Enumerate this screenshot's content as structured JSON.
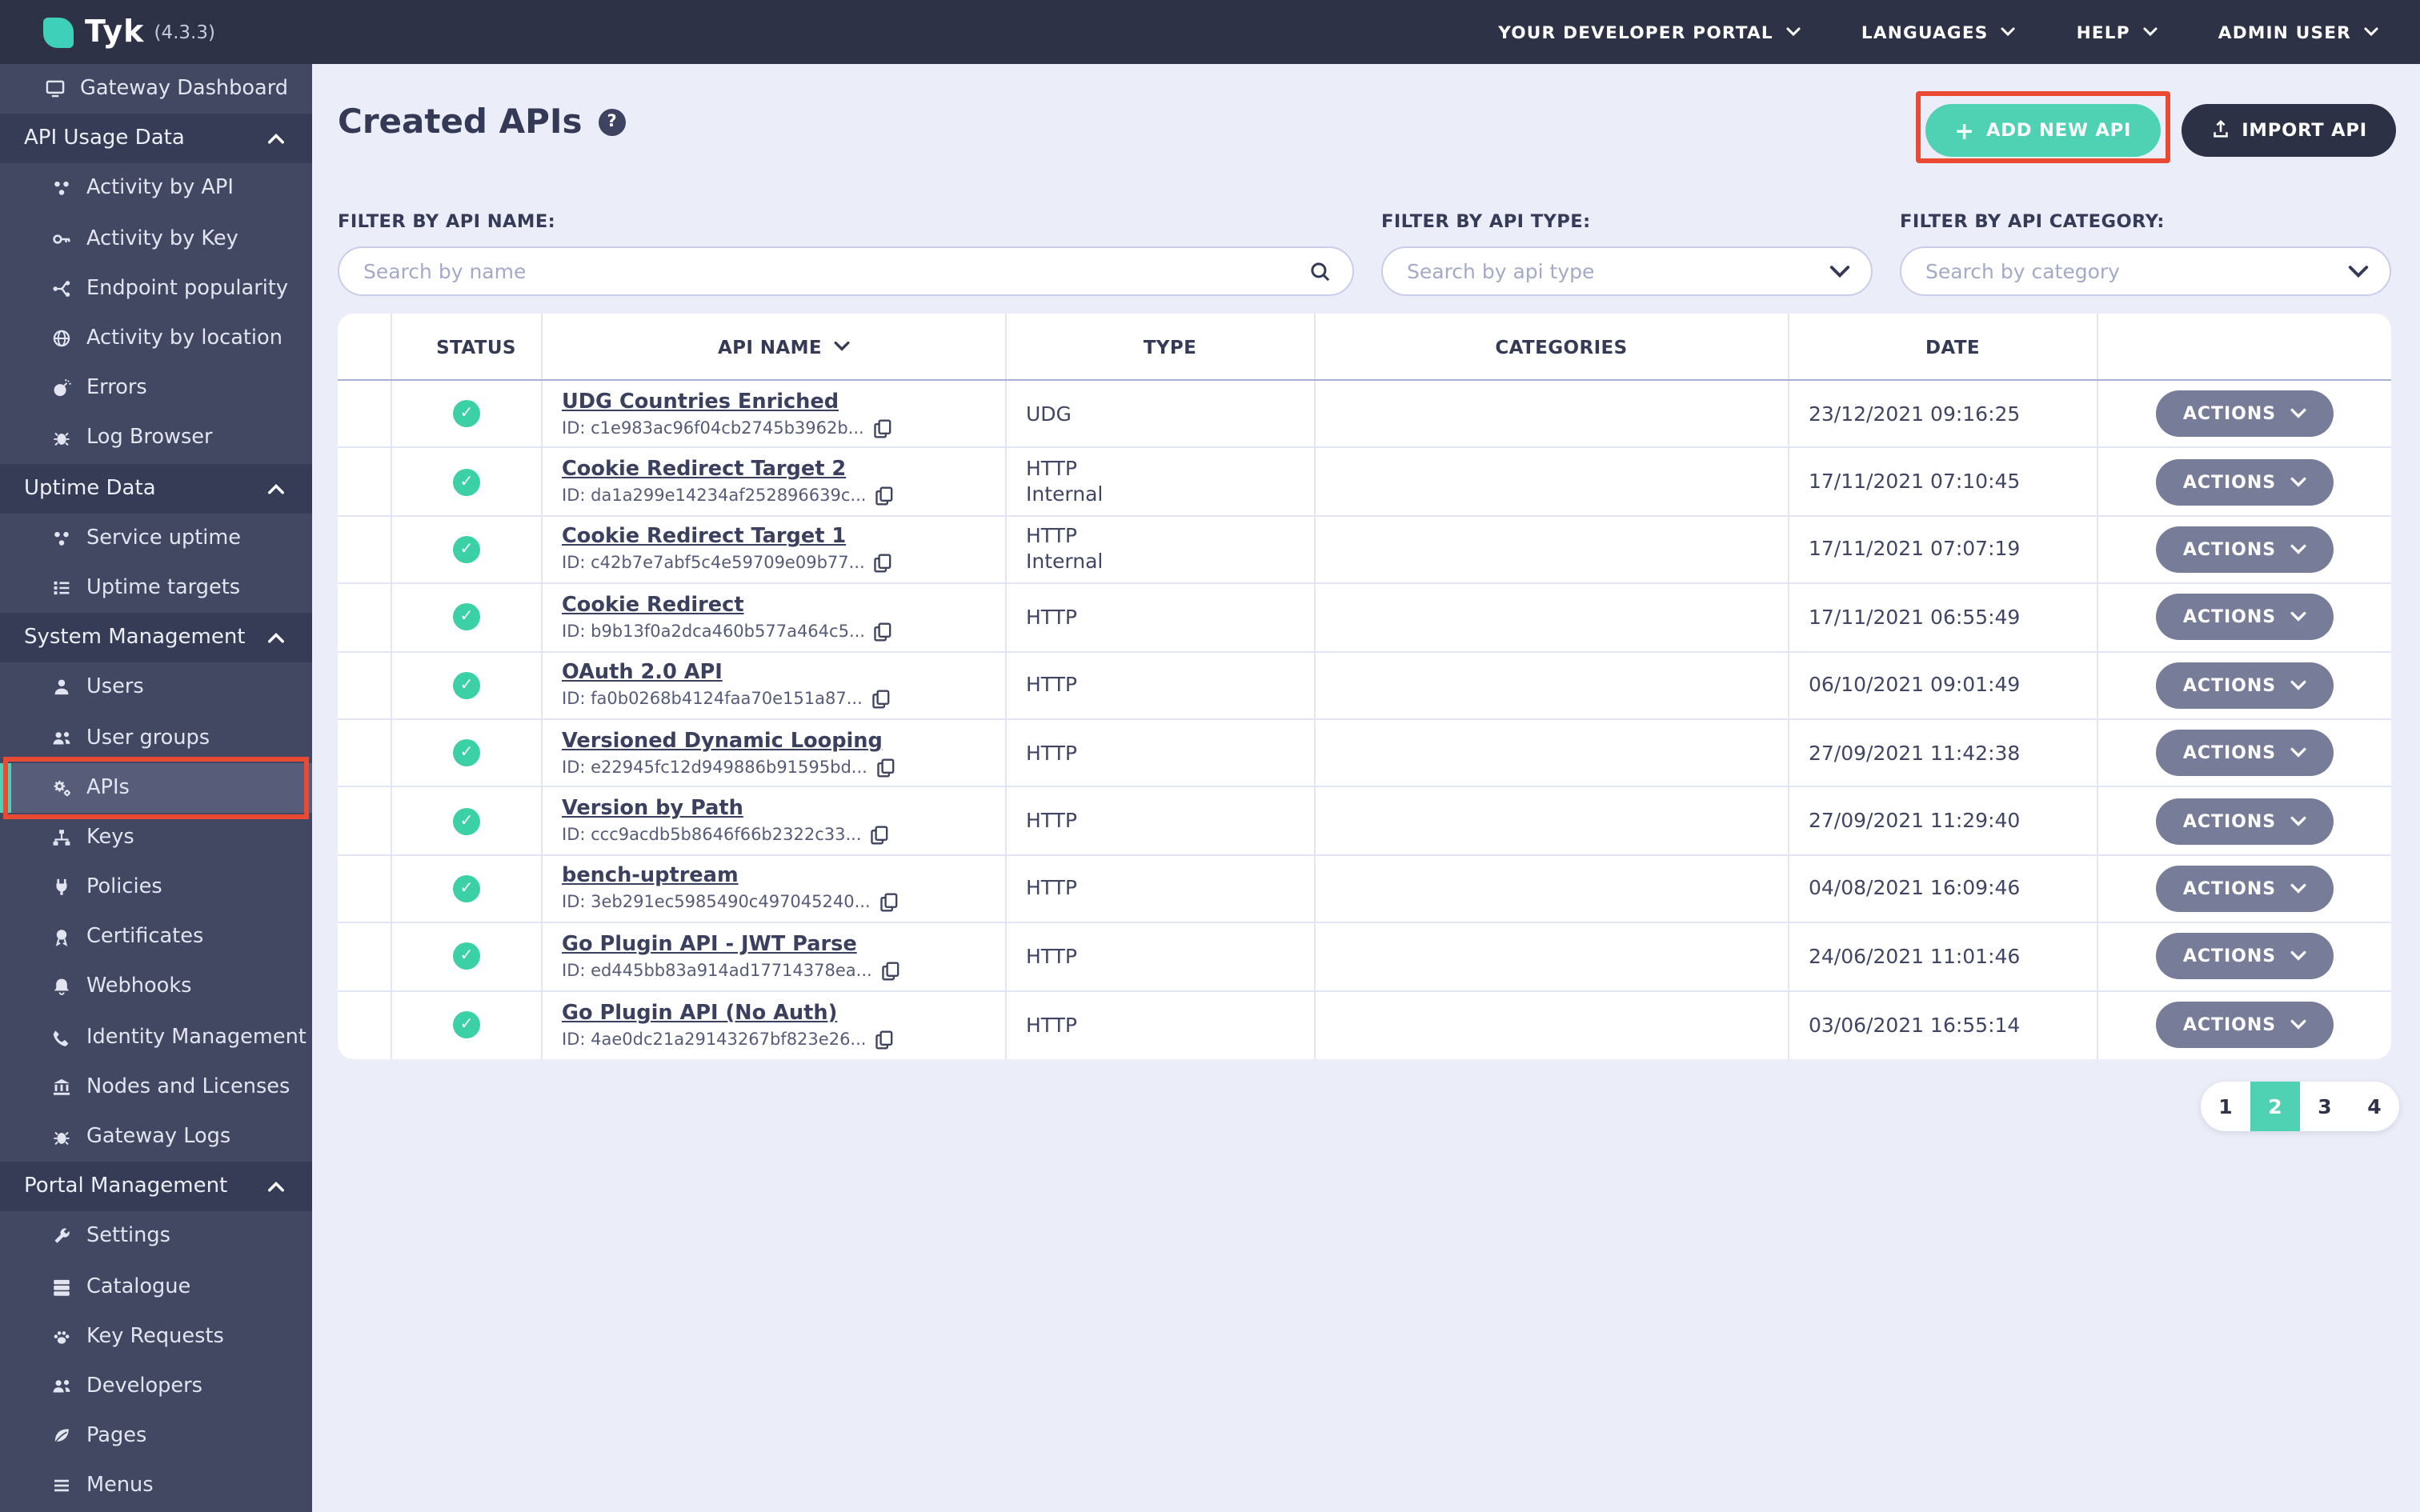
{
  "topbar": {
    "logo_text": "Tyk",
    "version": "(4.3.3)",
    "menu": [
      {
        "label": "YOUR DEVELOPER PORTAL"
      },
      {
        "label": "LANGUAGES"
      },
      {
        "label": "HELP"
      },
      {
        "label": "ADMIN USER"
      }
    ]
  },
  "sidebar": {
    "items": [
      {
        "kind": "item",
        "label": "Gateway Dashboard",
        "icon": "monitor-icon",
        "level": 1
      },
      {
        "kind": "header",
        "label": "API Usage Data"
      },
      {
        "kind": "item",
        "label": "Activity by API",
        "icon": "cluster-icon"
      },
      {
        "kind": "item",
        "label": "Activity by Key",
        "icon": "key-icon"
      },
      {
        "kind": "item",
        "label": "Endpoint popularity",
        "icon": "branch-icon"
      },
      {
        "kind": "item",
        "label": "Activity by location",
        "icon": "globe-icon"
      },
      {
        "kind": "item",
        "label": "Errors",
        "icon": "bomb-icon"
      },
      {
        "kind": "item",
        "label": "Log Browser",
        "icon": "bug-icon"
      },
      {
        "kind": "header",
        "label": "Uptime Data"
      },
      {
        "kind": "item",
        "label": "Service uptime",
        "icon": "cluster-icon"
      },
      {
        "kind": "item",
        "label": "Uptime targets",
        "icon": "list-icon"
      },
      {
        "kind": "header",
        "label": "System Management"
      },
      {
        "kind": "item",
        "label": "Users",
        "icon": "person-icon"
      },
      {
        "kind": "item",
        "label": "User groups",
        "icon": "people-icon"
      },
      {
        "kind": "item",
        "label": "APIs",
        "icon": "gears-icon",
        "selected": true,
        "annotated": true
      },
      {
        "kind": "item",
        "label": "Keys",
        "icon": "sitemap-icon"
      },
      {
        "kind": "item",
        "label": "Policies",
        "icon": "plug-icon"
      },
      {
        "kind": "item",
        "label": "Certificates",
        "icon": "certificate-icon"
      },
      {
        "kind": "item",
        "label": "Webhooks",
        "icon": "bell-icon"
      },
      {
        "kind": "item",
        "label": "Identity Management",
        "icon": "phone-icon"
      },
      {
        "kind": "item",
        "label": "Nodes and Licenses",
        "icon": "bank-icon"
      },
      {
        "kind": "item",
        "label": "Gateway Logs",
        "icon": "bug-icon"
      },
      {
        "kind": "header",
        "label": "Portal Management"
      },
      {
        "kind": "item",
        "label": "Settings",
        "icon": "wrench-icon"
      },
      {
        "kind": "item",
        "label": "Catalogue",
        "icon": "server-icon"
      },
      {
        "kind": "item",
        "label": "Key Requests",
        "icon": "paw-icon"
      },
      {
        "kind": "item",
        "label": "Developers",
        "icon": "people-icon"
      },
      {
        "kind": "item",
        "label": "Pages",
        "icon": "leaf-icon"
      },
      {
        "kind": "item",
        "label": "Menus",
        "icon": "bars-icon"
      }
    ]
  },
  "page": {
    "title": "Created APIs",
    "help_badge": "?",
    "add_button": "ADD NEW API",
    "add_button_plus": "+",
    "import_button": "IMPORT API"
  },
  "filters": {
    "name": {
      "label": "FILTER BY API NAME:",
      "placeholder": "Search by name",
      "value": ""
    },
    "type": {
      "label": "FILTER BY API TYPE:",
      "placeholder": "Search by api type",
      "value": ""
    },
    "category": {
      "label": "FILTER BY API CATEGORY:",
      "placeholder": "Search by category",
      "value": ""
    }
  },
  "table": {
    "columns": [
      "",
      "STATUS",
      "API NAME",
      "TYPE",
      "CATEGORIES",
      "DATE",
      ""
    ],
    "actions_label": "ACTIONS",
    "rows": [
      {
        "status": "active",
        "name": "UDG Countries Enriched",
        "id": "ID: c1e983ac96f04cb2745b3962b...",
        "type": [
          "UDG"
        ],
        "categories": "",
        "date": "23/12/2021 09:16:25"
      },
      {
        "status": "active",
        "name": "Cookie Redirect Target 2",
        "id": "ID: da1a299e14234af252896639c...",
        "type": [
          "HTTP",
          "Internal"
        ],
        "categories": "",
        "date": "17/11/2021 07:10:45"
      },
      {
        "status": "active",
        "name": "Cookie Redirect Target 1",
        "id": "ID: c42b7e7abf5c4e59709e09b77...",
        "type": [
          "HTTP",
          "Internal"
        ],
        "categories": "",
        "date": "17/11/2021 07:07:19"
      },
      {
        "status": "active",
        "name": "Cookie Redirect",
        "id": "ID: b9b13f0a2dca460b577a464c5...",
        "type": [
          "HTTP"
        ],
        "categories": "",
        "date": "17/11/2021 06:55:49"
      },
      {
        "status": "active",
        "name": "OAuth 2.0 API",
        "id": "ID: fa0b0268b4124faa70e151a87...",
        "type": [
          "HTTP"
        ],
        "categories": "",
        "date": "06/10/2021 09:01:49"
      },
      {
        "status": "active",
        "name": "Versioned Dynamic Looping",
        "id": "ID: e22945fc12d949886b91595bd...",
        "type": [
          "HTTP"
        ],
        "categories": "",
        "date": "27/09/2021 11:42:38"
      },
      {
        "status": "active",
        "name": "Version by Path",
        "id": "ID: ccc9acdb5b8646f66b2322c33...",
        "type": [
          "HTTP"
        ],
        "categories": "",
        "date": "27/09/2021 11:29:40"
      },
      {
        "status": "active",
        "name": "bench-uptream",
        "id": "ID: 3eb291ec5985490c497045240...",
        "type": [
          "HTTP"
        ],
        "categories": "",
        "date": "04/08/2021 16:09:46"
      },
      {
        "status": "active",
        "name": "Go Plugin API - JWT Parse",
        "id": "ID: ed445bb83a914ad17714378ea...",
        "type": [
          "HTTP"
        ],
        "categories": "",
        "date": "24/06/2021 11:01:46"
      },
      {
        "status": "active",
        "name": "Go Plugin API (No Auth)",
        "id": "ID: 4ae0dc21a29143267bf823e26...",
        "type": [
          "HTTP"
        ],
        "categories": "",
        "date": "03/06/2021 16:55:14"
      }
    ]
  },
  "pagination": {
    "pages": [
      "1",
      "2",
      "3",
      "4"
    ],
    "active": "2"
  },
  "colors": {
    "accent_teal": "#4fd2b4",
    "status_green": "#3bd0a5",
    "annotation_red": "#e84a33",
    "topbar_bg": "#2d3247",
    "sidebar_bg": "#424861",
    "sidebar_header_bg": "#363c55",
    "sidebar_selected_bg": "#575d78",
    "content_bg": "#ebedf8"
  }
}
